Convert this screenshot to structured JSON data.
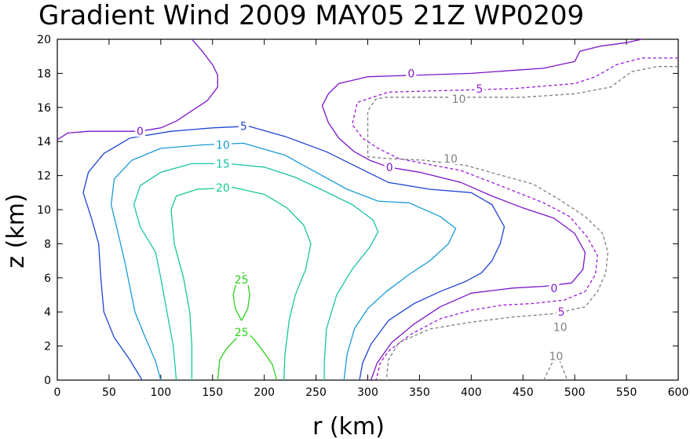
{
  "chart_data": {
    "type": "contour",
    "title": "Gradient Wind 2009 MAY05 21Z  WP0209",
    "xlabel": "r (km)",
    "ylabel": "z (km)",
    "xlim": [
      0,
      600
    ],
    "ylim": [
      0,
      20
    ],
    "xticks": [
      0,
      50,
      100,
      150,
      200,
      250,
      300,
      350,
      400,
      450,
      500,
      550,
      600
    ],
    "yticks": [
      0,
      2,
      4,
      6,
      8,
      10,
      12,
      14,
      16,
      18,
      20
    ],
    "grid": false,
    "colors": {
      "c0": "#7b16c8",
      "c5": "#1f45d4",
      "c10": "#1a9bd6",
      "c15": "#19c3a6",
      "c20": "#16c98a",
      "c25": "#2ccf1c",
      "cm5": "#9a1ad4",
      "cm10": "#7f7f7f"
    },
    "contours": [
      {
        "level": 0,
        "label": "0",
        "color": "c0",
        "dashed": false,
        "points": [
          [
            0,
            14.1
          ],
          [
            10,
            14.5
          ],
          [
            30,
            14.6
          ],
          [
            50,
            14.6
          ],
          [
            80,
            14.6
          ],
          [
            100,
            14.8
          ],
          [
            115,
            15.2
          ],
          [
            130,
            15.8
          ],
          [
            145,
            16.4
          ],
          [
            155,
            17.2
          ],
          [
            155,
            17.9
          ],
          [
            150,
            18.5
          ],
          [
            140,
            19.3
          ],
          [
            130,
            20
          ]
        ]
      },
      {
        "level": 0,
        "label": "0",
        "color": "c0",
        "dashed": false,
        "points": [
          [
            565,
            20
          ],
          [
            550,
            19.8
          ],
          [
            525,
            19.6
          ],
          [
            505,
            19.3
          ],
          [
            500,
            18.7
          ],
          [
            470,
            18.3
          ],
          [
            400,
            18
          ],
          [
            350,
            17.9
          ],
          [
            300,
            17.8
          ],
          [
            272,
            17.4
          ],
          [
            262,
            16.8
          ],
          [
            256,
            16.1
          ],
          [
            262,
            15.1
          ],
          [
            272,
            14.2
          ],
          [
            287,
            13.4
          ],
          [
            302,
            12.9
          ],
          [
            320,
            12.5
          ],
          [
            350,
            12.2
          ],
          [
            390,
            11.6
          ],
          [
            420,
            10.8
          ],
          [
            450,
            10.1
          ],
          [
            480,
            9.5
          ],
          [
            500,
            8.6
          ],
          [
            510,
            7.5
          ],
          [
            508,
            6.5
          ],
          [
            497,
            5.7
          ],
          [
            470,
            5.5
          ],
          [
            440,
            5.4
          ],
          [
            400,
            5.1
          ],
          [
            370,
            4.3
          ],
          [
            345,
            3.3
          ],
          [
            323,
            2.2
          ],
          [
            309,
            1
          ],
          [
            303,
            0
          ]
        ]
      },
      {
        "level": -5,
        "label": "-5",
        "color": "cm5",
        "dashed": true,
        "points": [
          [
            600,
            18.9
          ],
          [
            565,
            18.9
          ],
          [
            540,
            18.5
          ],
          [
            520,
            17.8
          ],
          [
            500,
            17.4
          ],
          [
            440,
            17.1
          ],
          [
            380,
            17
          ],
          [
            320,
            16.9
          ],
          [
            290,
            16.3
          ],
          [
            285,
            15
          ],
          [
            295,
            14.2
          ],
          [
            310,
            13.6
          ],
          [
            330,
            13
          ],
          [
            355,
            12.7
          ],
          [
            390,
            12.3
          ],
          [
            420,
            11.6
          ],
          [
            445,
            11
          ],
          [
            470,
            10.4
          ],
          [
            495,
            9.6
          ],
          [
            512,
            8.4
          ],
          [
            522,
            7.3
          ],
          [
            520,
            6.2
          ],
          [
            510,
            5.2
          ],
          [
            490,
            4.7
          ],
          [
            460,
            4.5
          ],
          [
            430,
            4.4
          ],
          [
            400,
            4.1
          ],
          [
            370,
            3.6
          ],
          [
            342,
            2.7
          ],
          [
            320,
            1.7
          ],
          [
            312,
            1
          ],
          [
            308,
            0
          ]
        ]
      },
      {
        "level": -10,
        "label": "-10",
        "color": "cm10",
        "dashed": true,
        "points": [
          [
            600,
            18.4
          ],
          [
            580,
            18.4
          ],
          [
            555,
            18.1
          ],
          [
            535,
            17.2
          ],
          [
            500,
            16.8
          ],
          [
            450,
            16.6
          ],
          [
            400,
            16.6
          ],
          [
            350,
            16.6
          ],
          [
            318,
            16.6
          ],
          [
            308,
            16.5
          ],
          [
            300,
            15.8
          ],
          [
            300,
            13.1
          ],
          [
            320,
            13
          ],
          [
            355,
            12.9
          ],
          [
            395,
            12.6
          ],
          [
            430,
            12
          ],
          [
            460,
            11.5
          ],
          [
            485,
            10.6
          ],
          [
            510,
            9.6
          ],
          [
            527,
            8.6
          ],
          [
            532,
            7.5
          ],
          [
            530,
            6.3
          ],
          [
            522,
            5.2
          ],
          [
            510,
            4.3
          ],
          [
            480,
            3.9
          ],
          [
            440,
            3.7
          ],
          [
            400,
            3.4
          ],
          [
            360,
            3
          ],
          [
            330,
            2.2
          ],
          [
            320,
            1.2
          ],
          [
            318,
            0
          ]
        ]
      },
      {
        "level": -10,
        "label": "-10",
        "color": "cm10",
        "dashed": true,
        "points": [
          [
            470,
            0
          ],
          [
            478,
            1
          ],
          [
            485,
            1.2
          ],
          [
            493,
            0
          ]
        ]
      },
      {
        "level": 5,
        "label": "5",
        "color": "c5",
        "dashed": false,
        "points": [
          [
            82,
            0
          ],
          [
            70,
            1.2
          ],
          [
            55,
            2.5
          ],
          [
            45,
            4
          ],
          [
            42,
            6
          ],
          [
            40,
            8
          ],
          [
            33,
            9.5
          ],
          [
            25,
            11
          ],
          [
            30,
            12.2
          ],
          [
            45,
            13.3
          ],
          [
            70,
            14.2
          ],
          [
            110,
            14.6
          ],
          [
            150,
            14.8
          ],
          [
            185,
            14.9
          ],
          [
            220,
            14.3
          ],
          [
            260,
            13.4
          ],
          [
            290,
            12.5
          ],
          [
            320,
            11.6
          ],
          [
            360,
            11.2
          ],
          [
            400,
            11
          ],
          [
            420,
            10.3
          ],
          [
            432,
            9
          ],
          [
            428,
            8
          ],
          [
            420,
            7
          ],
          [
            410,
            6.3
          ],
          [
            395,
            5.8
          ],
          [
            370,
            5.2
          ],
          [
            345,
            4.5
          ],
          [
            320,
            3.5
          ],
          [
            303,
            2.1
          ],
          [
            295,
            1
          ],
          [
            292,
            0
          ]
        ]
      },
      {
        "level": 10,
        "label": "10",
        "color": "c10",
        "dashed": false,
        "points": [
          [
            100,
            0
          ],
          [
            95,
            1.1
          ],
          [
            85,
            2.5
          ],
          [
            75,
            4
          ],
          [
            70,
            5.5
          ],
          [
            65,
            7
          ],
          [
            58,
            8.8
          ],
          [
            52,
            10.3
          ],
          [
            55,
            11.8
          ],
          [
            72,
            12.9
          ],
          [
            100,
            13.6
          ],
          [
            140,
            13.8
          ],
          [
            180,
            13.9
          ],
          [
            220,
            13.2
          ],
          [
            250,
            12.2
          ],
          [
            280,
            11.2
          ],
          [
            310,
            10.5
          ],
          [
            340,
            10.4
          ],
          [
            370,
            9.6
          ],
          [
            385,
            8.9
          ],
          [
            378,
            8
          ],
          [
            360,
            7
          ],
          [
            340,
            6.2
          ],
          [
            318,
            5.2
          ],
          [
            300,
            4.2
          ],
          [
            287,
            3
          ],
          [
            280,
            1.5
          ],
          [
            277,
            0
          ]
        ]
      },
      {
        "level": 15,
        "label": "15",
        "color": "c15",
        "dashed": false,
        "points": [
          [
            115,
            0
          ],
          [
            112,
            2
          ],
          [
            106,
            4
          ],
          [
            100,
            6
          ],
          [
            95,
            7.5
          ],
          [
            80,
            9
          ],
          [
            74,
            10.3
          ],
          [
            80,
            11.4
          ],
          [
            100,
            12.2
          ],
          [
            130,
            12.7
          ],
          [
            165,
            12.7
          ],
          [
            200,
            12.5
          ],
          [
            230,
            11.9
          ],
          [
            258,
            11.1
          ],
          [
            285,
            10.3
          ],
          [
            305,
            9.4
          ],
          [
            310,
            8.7
          ],
          [
            302,
            7.8
          ],
          [
            285,
            6.5
          ],
          [
            270,
            5
          ],
          [
            260,
            3
          ],
          [
            258,
            1
          ],
          [
            258,
            0
          ]
        ]
      },
      {
        "level": 20,
        "label": "20",
        "color": "c20",
        "dashed": false,
        "points": [
          [
            130,
            0
          ],
          [
            130,
            2
          ],
          [
            128,
            4
          ],
          [
            122,
            6
          ],
          [
            113,
            8
          ],
          [
            110,
            10
          ],
          [
            115,
            10.8
          ],
          [
            135,
            11.2
          ],
          [
            170,
            11.3
          ],
          [
            200,
            10.9
          ],
          [
            222,
            10.1
          ],
          [
            238,
            9.1
          ],
          [
            245,
            8
          ],
          [
            240,
            6.5
          ],
          [
            230,
            5
          ],
          [
            224,
            3.5
          ],
          [
            220,
            1.5
          ],
          [
            219,
            0
          ]
        ]
      },
      {
        "level": 25,
        "label": "25",
        "color": "c25",
        "dashed": false,
        "points": [
          [
            173,
            5.7
          ],
          [
            170,
            5
          ],
          [
            172,
            4.2
          ],
          [
            178,
            3.5
          ],
          [
            184,
            4.2
          ],
          [
            186,
            5
          ],
          [
            184,
            5.7
          ],
          [
            180,
            6.3
          ],
          [
            176,
            6.2
          ],
          [
            173,
            5.7
          ]
        ]
      },
      {
        "level": 25,
        "label": "25",
        "color": "c25",
        "dashed": false,
        "points": [
          [
            155,
            0
          ],
          [
            157,
            1.2
          ],
          [
            163,
            1.8
          ],
          [
            172,
            2.4
          ],
          [
            182,
            2.9
          ],
          [
            190,
            2.4
          ],
          [
            200,
            1.6
          ],
          [
            208,
            0.9
          ],
          [
            212,
            0
          ]
        ]
      }
    ],
    "labels": [
      {
        "text": "0",
        "color": "c0",
        "r": 80,
        "z": 14.6
      },
      {
        "text": "5",
        "color": "c5",
        "r": 180,
        "z": 14.9
      },
      {
        "text": "10",
        "color": "c10",
        "r": 160,
        "z": 13.8
      },
      {
        "text": "15",
        "color": "c15",
        "r": 160,
        "z": 12.7
      },
      {
        "text": "20",
        "color": "c20",
        "r": 160,
        "z": 11.3
      },
      {
        "text": "25",
        "color": "c25",
        "r": 178,
        "z": 5.9
      },
      {
        "text": "25",
        "color": "c25",
        "r": 178,
        "z": 2.8
      },
      {
        "text": "0",
        "color": "c0",
        "r": 342,
        "z": 18
      },
      {
        "text": "0",
        "color": "c0",
        "r": 321,
        "z": 12.5
      },
      {
        "text": "0",
        "color": "c0",
        "r": 480,
        "z": 5.4
      },
      {
        "text": "5",
        "color": "cm5",
        "r": 408,
        "z": 17.1
      },
      {
        "text": "5",
        "color": "cm5",
        "r": 487,
        "z": 4.0
      },
      {
        "text": "10",
        "color": "cm10",
        "r": 388,
        "z": 16.5
      },
      {
        "text": "10",
        "color": "cm10",
        "r": 380,
        "z": 13.0
      },
      {
        "text": "10",
        "color": "cm10",
        "r": 486,
        "z": 3.1
      },
      {
        "text": "10",
        "color": "cm10",
        "r": 482,
        "z": 1.4
      }
    ]
  }
}
